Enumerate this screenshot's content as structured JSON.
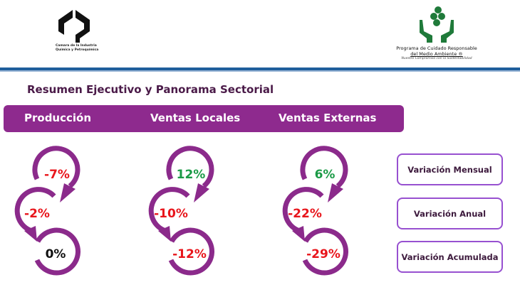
{
  "logos": {
    "left_caption": [
      "Camara de la Industria",
      "Química y Petroquímica"
    ],
    "right_caption": [
      "Programa de Cuidado Responsable",
      "del Medio Ambiente ®",
      "Nuestro Compromiso con la Sustentabilidad"
    ]
  },
  "title": "Resumen Ejecutivo y Panorama Sectorial",
  "columns": [
    {
      "label": "Producción",
      "values": [
        {
          "text": "-7%",
          "color": "#e8151b"
        },
        {
          "text": "-2%",
          "color": "#e8151b"
        },
        {
          "text": "0%",
          "color": "#111111"
        }
      ]
    },
    {
      "label": "Ventas Locales",
      "values": [
        {
          "text": "12%",
          "color": "#1a9a46"
        },
        {
          "text": "-10%",
          "color": "#e8151b"
        },
        {
          "text": "-12%",
          "color": "#e8151b"
        }
      ]
    },
    {
      "label": "Ventas Externas",
      "values": [
        {
          "text": "6%",
          "color": "#1a9a46"
        },
        {
          "text": "-22%",
          "color": "#e8151b"
        },
        {
          "text": "-29%",
          "color": "#e8151b"
        }
      ]
    }
  ],
  "legend_buttons": [
    "Variación Mensual",
    "Variación Anual",
    "Variación Acumulada"
  ],
  "colors": {
    "arc": "#8b2a8b",
    "header": "#8e2a8e",
    "button_border": "#9750d0",
    "rule": "#1f5e9c"
  }
}
